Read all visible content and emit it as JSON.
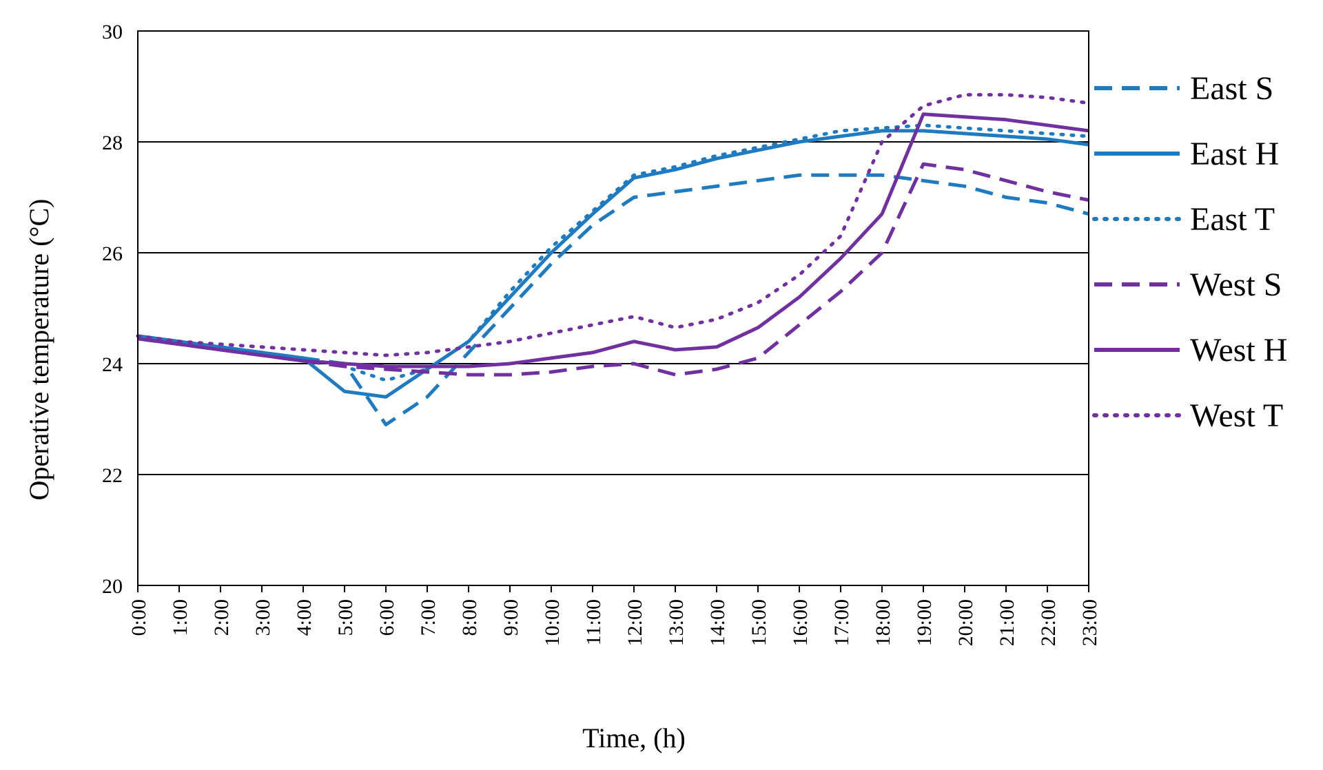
{
  "chart_data": {
    "type": "line",
    "xlabel": "Time, (h)",
    "ylabel": "Operative temperature (°C)",
    "ylim": [
      20,
      30
    ],
    "yticks": [
      20,
      22,
      24,
      26,
      28,
      30
    ],
    "grid": true,
    "legend_position": "right",
    "categories": [
      "0:00",
      "1:00",
      "2:00",
      "3:00",
      "4:00",
      "5:00",
      "6:00",
      "7:00",
      "8:00",
      "9:00",
      "10:00",
      "11:00",
      "12:00",
      "13:00",
      "14:00",
      "15:00",
      "16:00",
      "17:00",
      "18:00",
      "19:00",
      "20:00",
      "21:00",
      "22:00",
      "23:00"
    ],
    "series": [
      {
        "name": "East S",
        "color": "#1f7bc1",
        "dash": "dash",
        "values": [
          24.5,
          24.4,
          24.3,
          24.2,
          24.1,
          24.0,
          22.9,
          23.4,
          24.2,
          25.0,
          25.8,
          26.5,
          27.0,
          27.1,
          27.2,
          27.3,
          27.4,
          27.4,
          27.4,
          27.3,
          27.2,
          27.0,
          26.9,
          26.7
        ]
      },
      {
        "name": "East H",
        "color": "#1f7bc1",
        "dash": "solid",
        "values": [
          24.5,
          24.4,
          24.3,
          24.2,
          24.1,
          23.5,
          23.4,
          23.9,
          24.4,
          25.2,
          26.0,
          26.7,
          27.35,
          27.5,
          27.7,
          27.85,
          28.0,
          28.1,
          28.2,
          28.2,
          28.15,
          28.1,
          28.05,
          27.95
        ]
      },
      {
        "name": "East T",
        "color": "#1f7bc1",
        "dash": "dot",
        "values": [
          24.5,
          24.4,
          24.3,
          24.2,
          24.1,
          23.95,
          23.7,
          23.9,
          24.4,
          25.3,
          26.1,
          26.75,
          27.4,
          27.55,
          27.75,
          27.9,
          28.05,
          28.2,
          28.25,
          28.3,
          28.25,
          28.2,
          28.15,
          28.1
        ]
      },
      {
        "name": "West S",
        "color": "#7030a0",
        "dash": "dash",
        "values": [
          24.45,
          24.35,
          24.25,
          24.15,
          24.05,
          23.95,
          23.9,
          23.85,
          23.8,
          23.8,
          23.85,
          23.95,
          24.0,
          23.8,
          23.9,
          24.1,
          24.7,
          25.3,
          26.0,
          27.6,
          27.5,
          27.3,
          27.1,
          26.95
        ]
      },
      {
        "name": "West H",
        "color": "#7030a0",
        "dash": "solid",
        "values": [
          24.45,
          24.35,
          24.25,
          24.15,
          24.05,
          24.0,
          23.95,
          23.95,
          23.95,
          24.0,
          24.1,
          24.2,
          24.4,
          24.25,
          24.3,
          24.65,
          25.2,
          25.9,
          26.7,
          28.5,
          28.45,
          28.4,
          28.3,
          28.2
        ]
      },
      {
        "name": "West T",
        "color": "#7030a0",
        "dash": "dot",
        "values": [
          24.5,
          24.4,
          24.35,
          24.3,
          24.25,
          24.2,
          24.15,
          24.2,
          24.3,
          24.4,
          24.55,
          24.7,
          24.85,
          24.65,
          24.8,
          25.1,
          25.6,
          26.3,
          28.0,
          28.65,
          28.85,
          28.85,
          28.8,
          28.7
        ]
      }
    ]
  }
}
